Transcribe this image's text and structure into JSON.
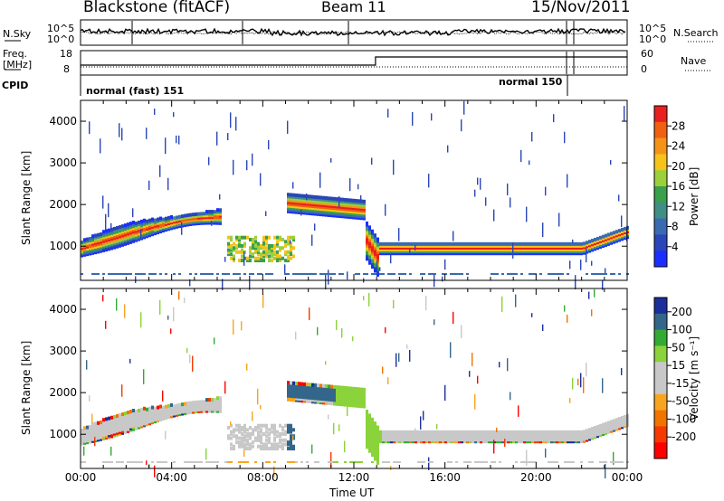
{
  "header": {
    "title": "Blackstone (fitACF)",
    "beam": "Beam 11",
    "date": "15/Nov/2011"
  },
  "top_panels": {
    "nsky_label": "N.Sky",
    "nsearch_label": "N.Search",
    "noise_ticks": [
      "10^5",
      "10^0"
    ],
    "freq_label_line1": "Freq.",
    "freq_label_line2": "[MHz]",
    "freq_ticks": [
      "18",
      "8"
    ],
    "nave_label": "Nave",
    "nave_ticks": [
      "60",
      "0"
    ],
    "cpid_label": "CPID",
    "cpid_segments": [
      {
        "text": "normal (fast) 151",
        "start_hour": 0,
        "end_hour": 21.3
      },
      {
        "text": "normal 150",
        "start_hour": 21.3,
        "end_hour": 21.8
      }
    ]
  },
  "colors": {
    "power": [
      "#1a2fff",
      "#2a46b8",
      "#3a6bb0",
      "#3f8f86",
      "#3aa04b",
      "#9bd03a",
      "#f7c21a",
      "#f59218",
      "#f06010",
      "#e82020"
    ],
    "velocity": [
      "#ff0000",
      "#f43a00",
      "#f27400",
      "#f7a520",
      "#c8c8c8",
      "#c8c8c8",
      "#8ad33a",
      "#33aa33",
      "#33668a",
      "#1a2f9a"
    ]
  },
  "chart_data": [
    {
      "type": "heatmap",
      "name": "power",
      "ylabel": "Slant Range [km]",
      "yticks": [
        1000,
        2000,
        3000,
        4000
      ],
      "ylim": [
        180,
        4500
      ],
      "xlim_hours": [
        0,
        24
      ],
      "colorbar": {
        "label": "Power [dB]",
        "ticks": [
          4,
          8,
          12,
          16,
          20,
          24,
          28
        ],
        "range": [
          0,
          32
        ]
      }
    },
    {
      "type": "heatmap",
      "name": "velocity",
      "ylabel": "Slant Range [km]",
      "yticks": [
        1000,
        2000,
        3000,
        4000
      ],
      "ylim": [
        180,
        4500
      ],
      "xlim_hours": [
        0,
        24
      ],
      "colorbar": {
        "label": "Velocity [m s⁻¹]",
        "ticks": [
          200,
          100,
          50,
          15,
          -15,
          -50,
          -100,
          -200
        ]
      }
    }
  ],
  "x_axis": {
    "ticks": [
      "00:00",
      "04:00",
      "08:00",
      "12:00",
      "16:00",
      "20:00",
      "00:00"
    ],
    "label": "Time UT"
  }
}
